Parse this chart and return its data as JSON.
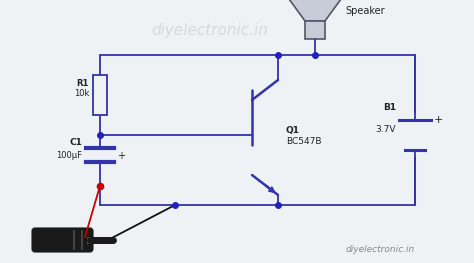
{
  "bg_color": "#eef2f5",
  "wire_color": "#3333aa",
  "red_wire_color": "#cc0000",
  "black_wire_color": "#111111",
  "component_color": "#3333aa",
  "dot_color": "#2222bb",
  "text_color": "#222222",
  "watermark_color": "#c8c8c8",
  "title_watermark": "diyelectronic.in",
  "bottom_watermark": "diyelectronic.in",
  "label_R1": "R1",
  "label_R1_val": "10k",
  "label_C1": "C1",
  "label_C1_val": "100μF",
  "label_Q1": "Q1",
  "label_Q1_val": "BC547B",
  "label_B1": "B1",
  "label_B1_val": "3.7V",
  "label_speaker": "Speaker",
  "figsize": [
    4.74,
    2.63
  ],
  "dpi": 100
}
